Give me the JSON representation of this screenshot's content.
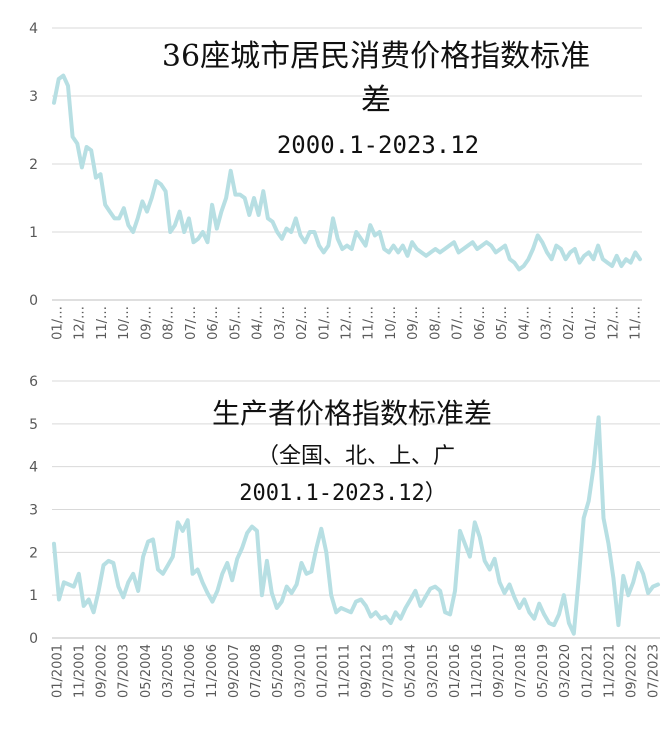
{
  "chart_data": [
    {
      "type": "line",
      "title": "36座城市居民消费价格指数标准",
      "title_line2": "差",
      "subtitle": "2000.1-2023.12",
      "ylim": [
        0,
        4
      ],
      "yticks": [
        "0",
        "1",
        "2",
        "3",
        "4"
      ],
      "xtick_labels": [
        "01/…",
        "12/…",
        "11/…",
        "10/…",
        "09/…",
        "08/…",
        "07/…",
        "06/…",
        "05/…",
        "04/…",
        "03/…",
        "02/…",
        "01/…",
        "12/…",
        "11/…",
        "10/…",
        "09/…",
        "08/…",
        "07/…",
        "06/…",
        "05/…",
        "04/…",
        "03/…",
        "02/…",
        "01/…",
        "12/…",
        "11/…"
      ],
      "grid": true,
      "color": "#b7dfe3",
      "series": [
        {
          "x_start": "2000-01",
          "x_end": "2023-12",
          "values": [
            2.9,
            3.25,
            3.3,
            3.15,
            2.4,
            2.3,
            1.95,
            2.25,
            2.2,
            1.8,
            1.85,
            1.4,
            1.3,
            1.2,
            1.2,
            1.35,
            1.1,
            1.0,
            1.2,
            1.45,
            1.3,
            1.5,
            1.75,
            1.7,
            1.6,
            1.0,
            1.1,
            1.3,
            1.0,
            1.2,
            0.85,
            0.9,
            1.0,
            0.85,
            1.4,
            1.05,
            1.3,
            1.5,
            1.9,
            1.55,
            1.55,
            1.5,
            1.25,
            1.5,
            1.25,
            1.6,
            1.2,
            1.15,
            1.0,
            0.9,
            1.05,
            1.0,
            1.2,
            0.95,
            0.85,
            1.0,
            1.0,
            0.8,
            0.7,
            0.8,
            1.2,
            0.9,
            0.75,
            0.8,
            0.75,
            1.0,
            0.9,
            0.8,
            1.1,
            0.95,
            1.0,
            0.75,
            0.7,
            0.8,
            0.7,
            0.8,
            0.65,
            0.85,
            0.75,
            0.7,
            0.65,
            0.7,
            0.75,
            0.7,
            0.75,
            0.8,
            0.85,
            0.7,
            0.75,
            0.8,
            0.85,
            0.75,
            0.8,
            0.85,
            0.8,
            0.7,
            0.75,
            0.8,
            0.6,
            0.55,
            0.45,
            0.5,
            0.6,
            0.75,
            0.95,
            0.85,
            0.7,
            0.6,
            0.8,
            0.75,
            0.6,
            0.7,
            0.75,
            0.55,
            0.65,
            0.7,
            0.6,
            0.8,
            0.6,
            0.55,
            0.5,
            0.65,
            0.5,
            0.6,
            0.55,
            0.7,
            0.6
          ]
        }
      ]
    },
    {
      "type": "line",
      "title": "生产者价格指数标准差",
      "subtitle": "（全国、北、上、广",
      "subtitle_line2": "2001.1-2023.12）",
      "ylim": [
        0,
        6
      ],
      "yticks": [
        "0",
        "1",
        "2",
        "3",
        "4",
        "5",
        "6"
      ],
      "xtick_labels": [
        "01/2001",
        "11/2001",
        "09/2002",
        "07/2003",
        "05/2004",
        "03/2005",
        "01/2006",
        "11/2006",
        "09/2007",
        "07/2008",
        "05/2009",
        "03/2010",
        "01/2011",
        "11/2011",
        "09/2012",
        "07/2013",
        "05/2014",
        "03/2015",
        "01/2016",
        "11/2016",
        "09/2017",
        "07/2018",
        "05/2019",
        "03/2020",
        "01/2021",
        "11/2021",
        "09/2022",
        "07/2023"
      ],
      "grid": true,
      "color": "#b7dfe3",
      "series": [
        {
          "x_start": "2001-01",
          "x_end": "2023-12",
          "values": [
            2.2,
            0.9,
            1.3,
            1.25,
            1.2,
            1.5,
            0.75,
            0.9,
            0.6,
            1.1,
            1.7,
            1.8,
            1.75,
            1.2,
            0.95,
            1.3,
            1.5,
            1.1,
            1.9,
            2.25,
            2.3,
            1.6,
            1.5,
            1.7,
            1.9,
            2.7,
            2.5,
            2.75,
            1.5,
            1.6,
            1.3,
            1.05,
            0.85,
            1.1,
            1.5,
            1.75,
            1.35,
            1.85,
            2.1,
            2.45,
            2.6,
            2.5,
            1.0,
            1.8,
            1.05,
            0.7,
            0.85,
            1.2,
            1.05,
            1.25,
            1.75,
            1.5,
            1.55,
            2.1,
            2.55,
            2.0,
            1.0,
            0.6,
            0.7,
            0.65,
            0.6,
            0.85,
            0.9,
            0.75,
            0.5,
            0.6,
            0.45,
            0.5,
            0.35,
            0.6,
            0.45,
            0.7,
            0.9,
            1.1,
            0.75,
            0.95,
            1.15,
            1.2,
            1.1,
            0.6,
            0.55,
            1.1,
            2.5,
            2.2,
            1.9,
            2.7,
            2.35,
            1.8,
            1.6,
            1.85,
            1.3,
            1.05,
            1.25,
            0.95,
            0.7,
            0.9,
            0.6,
            0.45,
            0.8,
            0.55,
            0.35,
            0.3,
            0.55,
            1.0,
            0.35,
            0.1,
            1.4,
            2.8,
            3.2,
            4.0,
            5.15,
            2.8,
            2.2,
            1.4,
            0.3,
            1.45,
            1.0,
            1.3,
            1.75,
            1.5,
            1.05,
            1.2,
            1.25
          ]
        }
      ]
    }
  ]
}
